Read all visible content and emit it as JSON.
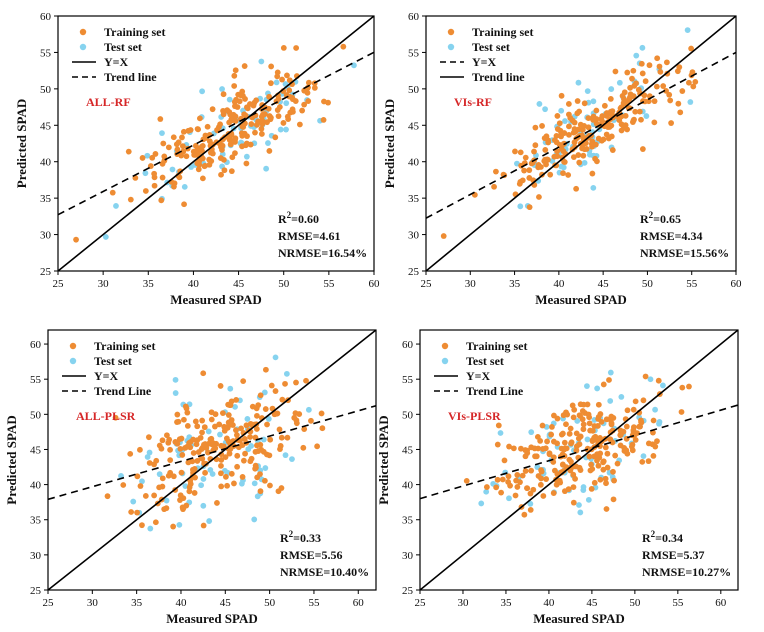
{
  "colors": {
    "training": "#ee8c33",
    "test": "#86d3ef",
    "line": "#000000",
    "label": "#d62728"
  },
  "chart_data": [
    {
      "type": "scatter",
      "label": "ALL-RF",
      "xlabel": "Measured SPAD",
      "ylabel": "Predicted SPAD",
      "xlim": [
        25,
        60
      ],
      "ylim": [
        25,
        60
      ],
      "xticks": [
        "25",
        "30",
        "35",
        "40",
        "45",
        "50",
        "55",
        "60"
      ],
      "yticks": [
        "25",
        "30",
        "35",
        "40",
        "45",
        "50",
        "55",
        "60"
      ],
      "legend": [
        "Training set",
        "Test set",
        "Y=X",
        "Trend line"
      ],
      "legend_order": [
        "training",
        "test",
        "solid",
        "dashed"
      ],
      "trend": {
        "slope": 0.637,
        "intercept": 16.8
      },
      "cloud": {
        "a": 0.63,
        "b": 16.8,
        "sd": 2.6,
        "xmin": 29,
        "xmax": 59,
        "n_train": 230,
        "n_test": 70,
        "seed": 11
      },
      "extra_points": [
        [
          27,
          29.3
        ]
      ],
      "stats": {
        "r2": "2",
        "r2_label": "R",
        "r2_value": "=0.60",
        "rmse": "RMSE=4.61",
        "nrmse": "NRMSE=16.54%"
      }
    },
    {
      "type": "scatter",
      "label": "VIs-RF",
      "xlabel": "Measured SPAD",
      "ylabel": "Predicted SPAD",
      "xlim": [
        25,
        60
      ],
      "ylim": [
        25,
        60
      ],
      "xticks": [
        "25",
        "30",
        "35",
        "40",
        "45",
        "50",
        "55",
        "60"
      ],
      "yticks": [
        "25",
        "30",
        "35",
        "40",
        "45",
        "50",
        "55",
        "60"
      ],
      "legend": [
        "Training set",
        "Test set",
        "Y=X",
        "Trend line"
      ],
      "legend_order": [
        "training",
        "test",
        "dashed",
        "solid"
      ],
      "trend": {
        "slope": 0.65,
        "intercept": 16.0
      },
      "cloud": {
        "a": 0.65,
        "b": 16.0,
        "sd": 2.4,
        "xmin": 29,
        "xmax": 59,
        "n_train": 230,
        "n_test": 70,
        "seed": 23
      },
      "extra_points": [
        [
          27,
          29.8
        ]
      ],
      "stats": {
        "r2": "2",
        "r2_label": "R",
        "r2_value": "=0.65",
        "rmse": "RMSE=4.34",
        "nrmse": "NRMSE=15.56%"
      }
    },
    {
      "type": "scatter",
      "label": "ALL-PLSR",
      "xlabel": "Measured SPAD",
      "ylabel": "Predicted SPAD",
      "xlim": [
        25,
        62
      ],
      "ylim": [
        25,
        62
      ],
      "xticks": [
        "25",
        "30",
        "35",
        "40",
        "45",
        "50",
        "55",
        "60"
      ],
      "yticks": [
        "25",
        "30",
        "35",
        "40",
        "45",
        "50",
        "55",
        "60"
      ],
      "legend": [
        "Training set",
        "Test set",
        "Y=X",
        "Trend Line"
      ],
      "legend_order": [
        "training",
        "test",
        "solid",
        "dashed"
      ],
      "trend": {
        "slope": 0.36,
        "intercept": 28.9
      },
      "cloud": {
        "a": 0.36,
        "b": 29.0,
        "sd": 3.8,
        "xmin": 29,
        "xmax": 59,
        "n_train": 240,
        "n_test": 70,
        "seed": 37
      },
      "extra_points": [],
      "stats": {
        "r2": "2",
        "r2_label": "R",
        "r2_value": "=0.33",
        "rmse": "RMSE=5.56",
        "nrmse": "NRMSE=10.40%"
      }
    },
    {
      "type": "scatter",
      "label": "VIs-PLSR",
      "xlabel": "Measured SPAD",
      "ylabel": "Predicted SPAD",
      "xlim": [
        25,
        62
      ],
      "ylim": [
        25,
        62
      ],
      "xticks": [
        "25",
        "30",
        "35",
        "40",
        "45",
        "50",
        "55",
        "60"
      ],
      "yticks": [
        "25",
        "30",
        "35",
        "40",
        "45",
        "50",
        "55",
        "60"
      ],
      "legend": [
        "Training set",
        "Test set",
        "Y=X",
        "Trend Line"
      ],
      "legend_order": [
        "training",
        "test",
        "solid",
        "dashed"
      ],
      "trend": {
        "slope": 0.36,
        "intercept": 29.0
      },
      "cloud": {
        "a": 0.36,
        "b": 29.2,
        "sd": 3.6,
        "xmin": 29,
        "xmax": 59,
        "n_train": 240,
        "n_test": 70,
        "seed": 53
      },
      "extra_points": [],
      "stats": {
        "r2": "2",
        "r2_label": "R",
        "r2_value": "=0.34",
        "rmse": "RMSE=5.37",
        "nrmse": "NRMSE=10.27%"
      }
    }
  ]
}
